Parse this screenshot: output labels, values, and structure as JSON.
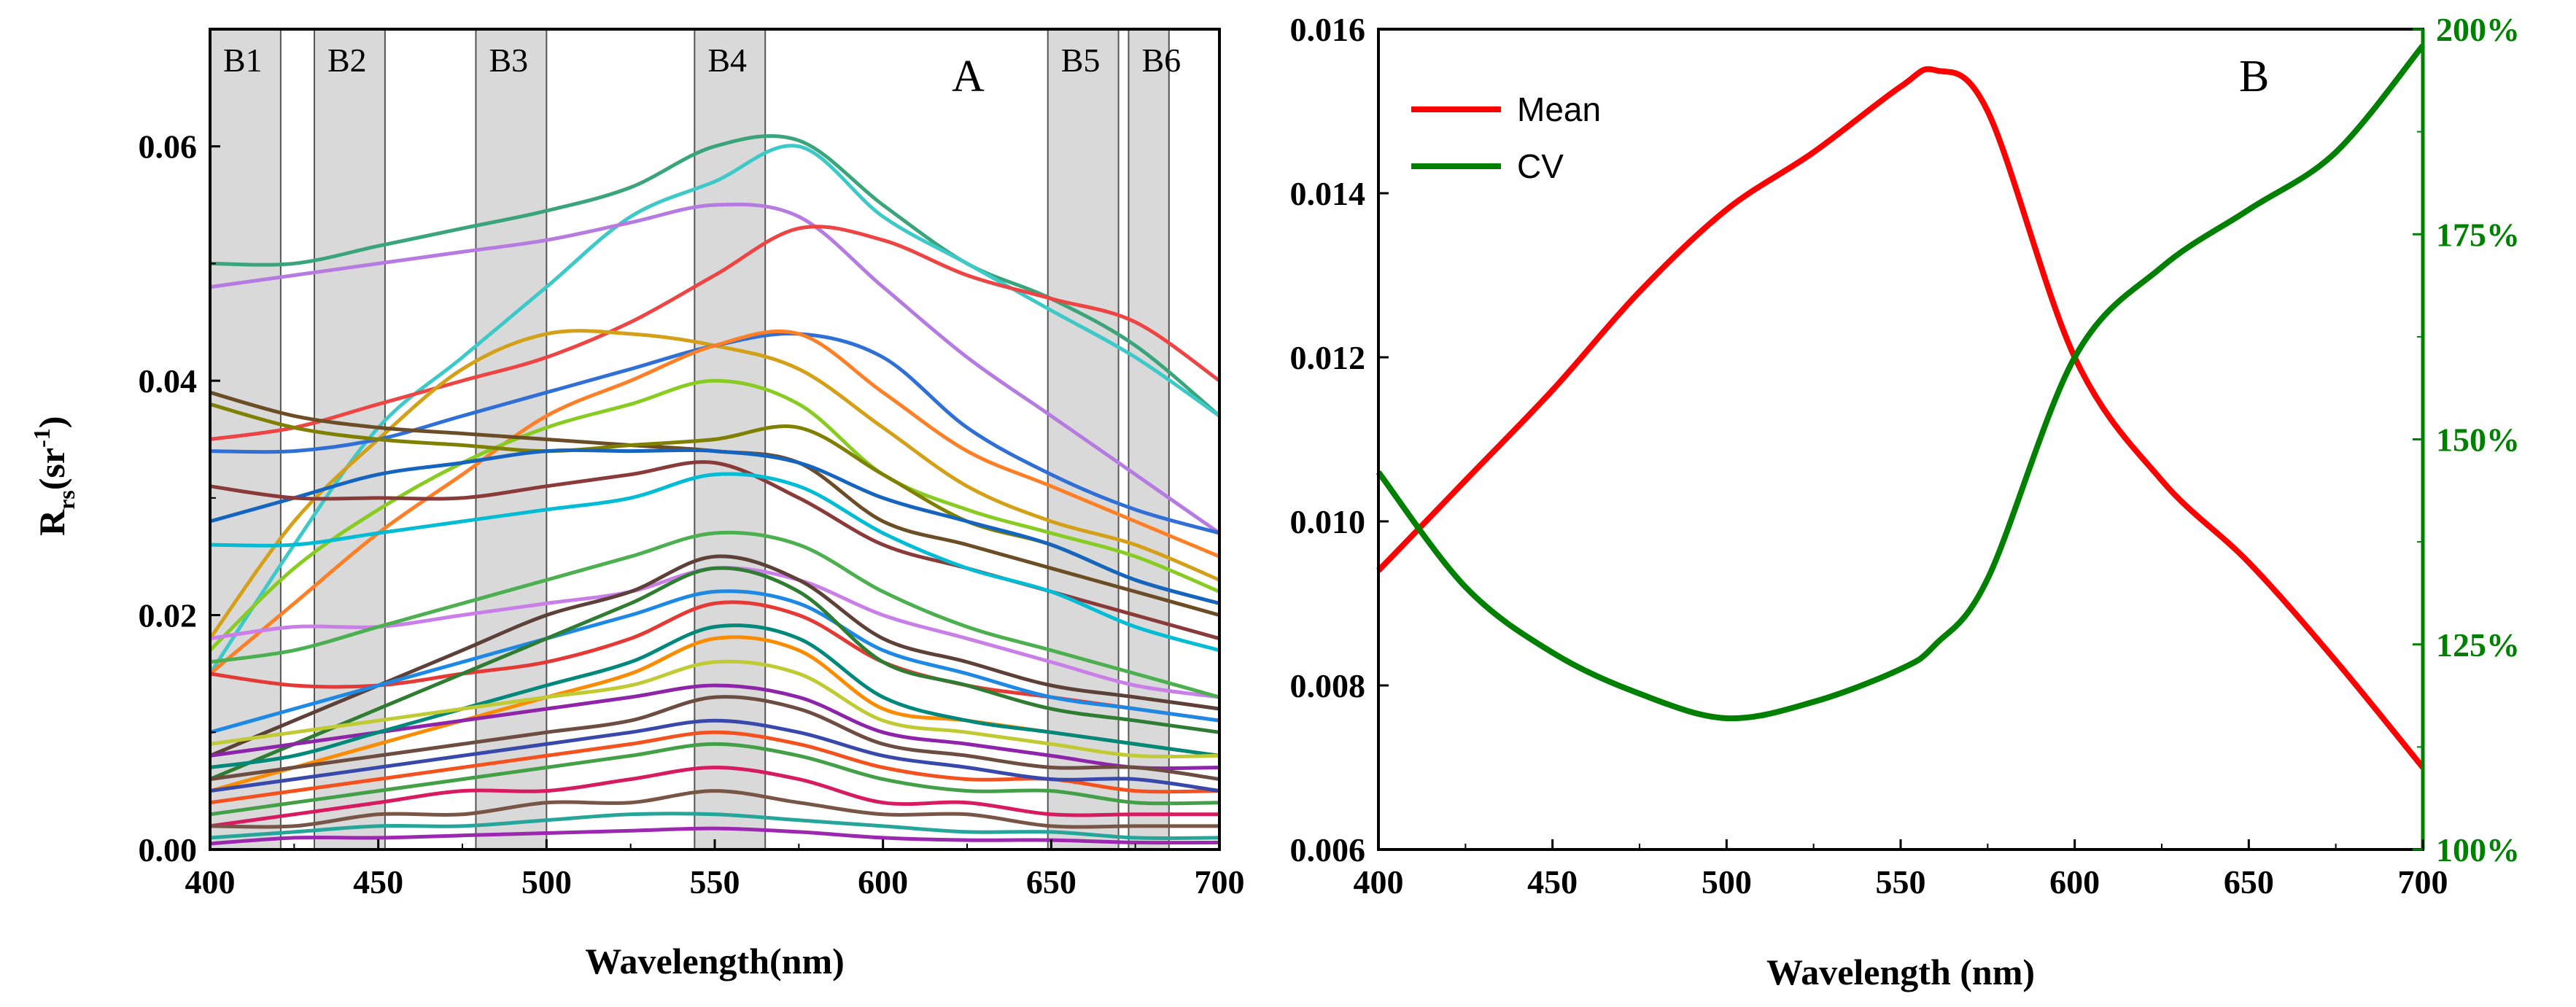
{
  "chart_data": [
    {
      "type": "line",
      "panel_label": "A",
      "title": "",
      "xlabel": "Wavelength(nm)",
      "ylabel": {
        "main": "R",
        "sub": "rs",
        "unit_open": "(sr",
        "unit_sup": "-1",
        "unit_close": ")"
      },
      "xlim": [
        400,
        700
      ],
      "ylim": [
        0,
        0.07
      ],
      "xticks": [
        400,
        450,
        500,
        550,
        600,
        650,
        700
      ],
      "yticks": [
        {
          "value": 0.0,
          "label": "0.00"
        },
        {
          "value": 0.02,
          "label": "0.02"
        },
        {
          "value": 0.04,
          "label": "0.04"
        },
        {
          "value": 0.06,
          "label": "0.06"
        }
      ],
      "bands": [
        {
          "name": "B1",
          "start": 400,
          "end": 421
        },
        {
          "name": "B2",
          "start": 431,
          "end": 452
        },
        {
          "name": "B3",
          "start": 479,
          "end": 500
        },
        {
          "name": "B4",
          "start": 544,
          "end": 565
        },
        {
          "name": "B5",
          "start": 649,
          "end": 670
        },
        {
          "name": "B6",
          "start": 673,
          "end": 685
        }
      ],
      "x": [
        400,
        425,
        450,
        475,
        500,
        525,
        550,
        575,
        600,
        625,
        650,
        675,
        700
      ],
      "series": [
        {
          "color": "#3aa57a",
          "values": [
            0.05,
            0.05,
            0.0515,
            0.053,
            0.0545,
            0.0565,
            0.06,
            0.0605,
            0.055,
            0.05,
            0.047,
            0.043,
            0.037
          ]
        },
        {
          "color": "#3ec9c9",
          "values": [
            0.015,
            0.026,
            0.036,
            0.042,
            0.048,
            0.054,
            0.057,
            0.06,
            0.054,
            0.05,
            0.046,
            0.042,
            0.037
          ]
        },
        {
          "color": "#b57be0",
          "values": [
            0.048,
            0.049,
            0.05,
            0.051,
            0.052,
            0.0535,
            0.055,
            0.054,
            0.048,
            0.042,
            0.037,
            0.032,
            0.027
          ]
        },
        {
          "color": "#ee4444",
          "values": [
            0.035,
            0.036,
            0.038,
            0.04,
            0.042,
            0.045,
            0.049,
            0.053,
            0.052,
            0.049,
            0.047,
            0.045,
            0.04
          ]
        },
        {
          "color": "#d4a017",
          "values": [
            0.018,
            0.028,
            0.035,
            0.041,
            0.044,
            0.044,
            0.043,
            0.041,
            0.036,
            0.031,
            0.028,
            0.026,
            0.023
          ]
        },
        {
          "color": "#2f6fd6",
          "values": [
            0.034,
            0.034,
            0.035,
            0.037,
            0.039,
            0.041,
            0.043,
            0.044,
            0.042,
            0.036,
            0.032,
            0.029,
            0.027
          ]
        },
        {
          "color": "#ff7f27",
          "values": [
            0.015,
            0.021,
            0.027,
            0.032,
            0.037,
            0.04,
            0.043,
            0.044,
            0.039,
            0.034,
            0.031,
            0.028,
            0.025
          ]
        },
        {
          "color": "#88cc22",
          "values": [
            0.017,
            0.024,
            0.029,
            0.033,
            0.036,
            0.038,
            0.04,
            0.038,
            0.032,
            0.029,
            0.027,
            0.025,
            0.022
          ]
        },
        {
          "color": "#6b4e26",
          "values": [
            0.039,
            0.037,
            0.036,
            0.0355,
            0.035,
            0.0345,
            0.034,
            0.033,
            0.028,
            0.026,
            0.024,
            0.022,
            0.02
          ]
        },
        {
          "color": "#808000",
          "values": [
            0.038,
            0.036,
            0.035,
            0.0345,
            0.034,
            0.0345,
            0.035,
            0.036,
            0.032,
            0.028,
            0.026,
            0.023,
            0.021
          ]
        },
        {
          "color": "#1565c0",
          "values": [
            0.028,
            0.03,
            0.032,
            0.033,
            0.034,
            0.034,
            0.034,
            0.033,
            0.03,
            0.028,
            0.026,
            0.023,
            0.021
          ]
        },
        {
          "color": "#8b3a3a",
          "values": [
            0.031,
            0.03,
            0.03,
            0.03,
            0.031,
            0.032,
            0.033,
            0.03,
            0.026,
            0.024,
            0.022,
            0.02,
            0.018
          ]
        },
        {
          "color": "#00bcd4",
          "values": [
            0.026,
            0.026,
            0.027,
            0.028,
            0.029,
            0.03,
            0.032,
            0.031,
            0.027,
            0.024,
            0.022,
            0.019,
            0.017
          ]
        },
        {
          "color": "#c97ee8",
          "values": [
            0.018,
            0.019,
            0.019,
            0.02,
            0.021,
            0.022,
            0.024,
            0.023,
            0.02,
            0.018,
            0.016,
            0.014,
            0.013
          ]
        },
        {
          "color": "#4caf50",
          "values": [
            0.016,
            0.017,
            0.019,
            0.021,
            0.023,
            0.025,
            0.027,
            0.026,
            0.022,
            0.019,
            0.017,
            0.015,
            0.013
          ]
        },
        {
          "color": "#5d4037",
          "values": [
            0.008,
            0.011,
            0.014,
            0.017,
            0.02,
            0.022,
            0.025,
            0.023,
            0.018,
            0.016,
            0.014,
            0.013,
            0.012
          ]
        },
        {
          "color": "#e53935",
          "values": [
            0.015,
            0.014,
            0.014,
            0.015,
            0.016,
            0.018,
            0.021,
            0.02,
            0.016,
            0.014,
            0.013,
            0.012,
            0.011
          ]
        },
        {
          "color": "#1e88e5",
          "values": [
            0.01,
            0.012,
            0.014,
            0.016,
            0.018,
            0.02,
            0.022,
            0.021,
            0.017,
            0.015,
            0.013,
            0.012,
            0.011
          ]
        },
        {
          "color": "#2e7d32",
          "values": [
            0.006,
            0.009,
            0.012,
            0.015,
            0.018,
            0.021,
            0.024,
            0.022,
            0.016,
            0.014,
            0.012,
            0.011,
            0.01
          ]
        },
        {
          "color": "#fb8c00",
          "values": [
            0.005,
            0.007,
            0.009,
            0.011,
            0.013,
            0.015,
            0.018,
            0.017,
            0.012,
            0.011,
            0.01,
            0.009,
            0.008
          ]
        },
        {
          "color": "#8e24aa",
          "values": [
            0.008,
            0.009,
            0.01,
            0.011,
            0.012,
            0.013,
            0.014,
            0.013,
            0.01,
            0.009,
            0.008,
            0.007,
            0.007
          ]
        },
        {
          "color": "#00897b",
          "values": [
            0.007,
            0.008,
            0.01,
            0.012,
            0.014,
            0.016,
            0.019,
            0.018,
            0.013,
            0.011,
            0.01,
            0.009,
            0.008
          ]
        },
        {
          "color": "#c0ca33",
          "values": [
            0.009,
            0.01,
            0.011,
            0.012,
            0.013,
            0.014,
            0.016,
            0.015,
            0.011,
            0.01,
            0.009,
            0.008,
            0.008
          ]
        },
        {
          "color": "#6d4c41",
          "values": [
            0.006,
            0.007,
            0.008,
            0.009,
            0.01,
            0.011,
            0.013,
            0.012,
            0.009,
            0.008,
            0.007,
            0.007,
            0.006
          ]
        },
        {
          "color": "#f4511e",
          "values": [
            0.004,
            0.005,
            0.006,
            0.007,
            0.008,
            0.009,
            0.01,
            0.009,
            0.007,
            0.006,
            0.006,
            0.005,
            0.005
          ]
        },
        {
          "color": "#3949ab",
          "values": [
            0.005,
            0.006,
            0.007,
            0.008,
            0.009,
            0.01,
            0.011,
            0.01,
            0.008,
            0.007,
            0.006,
            0.006,
            0.005
          ]
        },
        {
          "color": "#43a047",
          "values": [
            0.003,
            0.004,
            0.005,
            0.006,
            0.007,
            0.008,
            0.009,
            0.008,
            0.006,
            0.005,
            0.005,
            0.004,
            0.004
          ]
        },
        {
          "color": "#d81b60",
          "values": [
            0.002,
            0.003,
            0.004,
            0.005,
            0.005,
            0.006,
            0.007,
            0.006,
            0.004,
            0.004,
            0.003,
            0.003,
            0.003
          ]
        },
        {
          "color": "#795548",
          "values": [
            0.002,
            0.002,
            0.003,
            0.003,
            0.004,
            0.004,
            0.005,
            0.004,
            0.003,
            0.003,
            0.002,
            0.002,
            0.002
          ]
        },
        {
          "color": "#26a69a",
          "values": [
            0.001,
            0.0015,
            0.002,
            0.002,
            0.0025,
            0.003,
            0.003,
            0.0025,
            0.002,
            0.0015,
            0.0015,
            0.001,
            0.001
          ]
        },
        {
          "color": "#9c27b0",
          "values": [
            0.0005,
            0.001,
            0.001,
            0.0012,
            0.0014,
            0.0016,
            0.0018,
            0.0015,
            0.001,
            0.0008,
            0.0008,
            0.0006,
            0.0006
          ]
        }
      ]
    },
    {
      "type": "line",
      "panel_label": "B",
      "title": "",
      "xlabel": "Wavelength (nm)",
      "ylabel": "",
      "ylabel_right": "",
      "xlim": [
        400,
        700
      ],
      "ylim": [
        0.006,
        0.016
      ],
      "ylim_right": [
        100,
        200
      ],
      "xticks": [
        400,
        450,
        500,
        550,
        600,
        650,
        700
      ],
      "yticks": [
        {
          "value": 0.006,
          "label": "0.006"
        },
        {
          "value": 0.008,
          "label": "0.008"
        },
        {
          "value": 0.01,
          "label": "0.010"
        },
        {
          "value": 0.012,
          "label": "0.012"
        },
        {
          "value": 0.014,
          "label": "0.014"
        },
        {
          "value": 0.016,
          "label": "0.016"
        }
      ],
      "yticks_right": [
        {
          "value": 100,
          "label": "100%"
        },
        {
          "value": 125,
          "label": "125%"
        },
        {
          "value": 150,
          "label": "150%"
        },
        {
          "value": 175,
          "label": "175%"
        },
        {
          "value": 200,
          "label": "200%"
        }
      ],
      "legend": [
        {
          "name": "Mean",
          "color": "#ff0000"
        },
        {
          "name": "CV",
          "color": "#008000"
        }
      ],
      "legend_position": "top-left",
      "x": [
        400,
        425,
        450,
        475,
        500,
        525,
        550,
        560,
        575,
        600,
        625,
        650,
        675,
        700
      ],
      "series": [
        {
          "name": "Mean",
          "color": "#ff0000",
          "axis": "left",
          "values": [
            0.0094,
            0.0105,
            0.0116,
            0.0128,
            0.0138,
            0.0145,
            0.0153,
            0.0155,
            0.015,
            0.012,
            0.0105,
            0.0095,
            0.0083,
            0.007
          ]
        },
        {
          "name": "CV",
          "color": "#008000",
          "axis": "right",
          "values": [
            146,
            132,
            124,
            119,
            116,
            118,
            122,
            125,
            133,
            160,
            171,
            178,
            185,
            198
          ]
        }
      ]
    }
  ]
}
